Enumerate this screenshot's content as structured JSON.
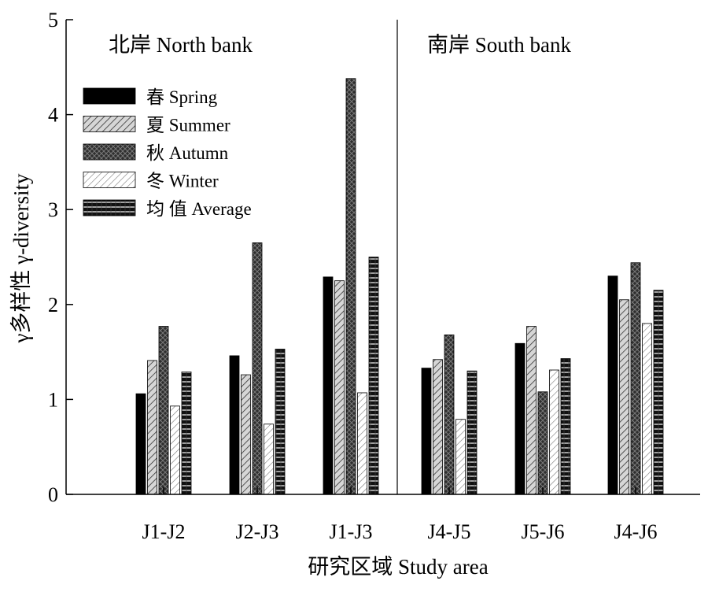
{
  "chart_data": {
    "type": "bar",
    "ylabel": "γ多样性  γ-diversity",
    "xlabel": "研究区域 Study area",
    "ylim": [
      0,
      5
    ],
    "yticks": [
      0,
      1,
      2,
      3,
      4,
      5
    ],
    "categories": [
      "J1-J2",
      "J2-J3",
      "J1-J3",
      "J4-J5",
      "J5-J6",
      "J4-J6"
    ],
    "regions": [
      {
        "label": "北岸 North bank",
        "categories": [
          "J1-J2",
          "J2-J3",
          "J1-J3"
        ]
      },
      {
        "label": "南岸   South bank",
        "categories": [
          "J4-J5",
          "J5-J6",
          "J4-J6"
        ]
      }
    ],
    "series": [
      {
        "name": "春 Spring",
        "pattern": "solid",
        "values": [
          1.06,
          1.46,
          2.29,
          1.33,
          1.59,
          2.3
        ]
      },
      {
        "name": "夏 Summer",
        "pattern": "diagonal-light",
        "values": [
          1.41,
          1.26,
          2.25,
          1.42,
          1.77,
          2.05
        ]
      },
      {
        "name": "秋 Autumn",
        "pattern": "crosshatch-dark",
        "values": [
          1.77,
          2.65,
          4.38,
          1.68,
          1.08,
          2.44
        ]
      },
      {
        "name": "冬 Winter",
        "pattern": "diagonal-white",
        "values": [
          0.93,
          0.74,
          1.07,
          0.79,
          1.31,
          1.8
        ]
      },
      {
        "name": "均 值  Average",
        "pattern": "horizontal-stripes",
        "values": [
          1.29,
          1.53,
          2.5,
          1.3,
          1.43,
          2.15
        ]
      }
    ],
    "legend_position": "top-left",
    "grid": false
  }
}
